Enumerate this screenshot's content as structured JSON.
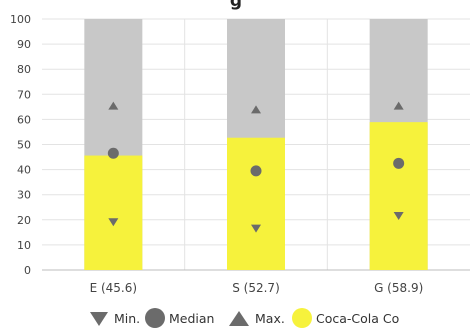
{
  "chart_data": {
    "type": "bar",
    "title": "g",
    "categories": [
      "E (45.6)",
      "S (52.7)",
      "G (58.9)"
    ],
    "series": [
      {
        "name": "Coca-Cola Co",
        "values": [
          45.6,
          52.7,
          58.9
        ]
      },
      {
        "name": "Min.",
        "values": [
          19,
          16.5,
          21.5
        ]
      },
      {
        "name": "Median",
        "values": [
          46.5,
          39.5,
          42.5
        ]
      },
      {
        "name": "Max.",
        "values": [
          65.5,
          64,
          65.5
        ]
      }
    ],
    "range_max": [
      100,
      100,
      100
    ],
    "ylim": [
      0,
      100
    ],
    "yticks": [
      0,
      10,
      20,
      30,
      40,
      50,
      60,
      70,
      80,
      90,
      100
    ],
    "grid": true,
    "legend_position": "bottom",
    "colors": {
      "range_bar": "#c8c8c8",
      "company_bar": "#f6f23c",
      "markers": "#6b6b6b",
      "grid": "#e3e3e3"
    }
  },
  "legend": {
    "min_label": "Min.",
    "median_label": "Median",
    "max_label": "Max.",
    "company_label": "Coca-Cola Co"
  }
}
